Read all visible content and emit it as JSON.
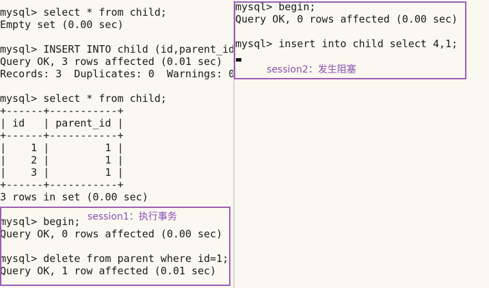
{
  "left_terminal": {
    "lines": [
      "mysql> select * from child;",
      "Empty set (0.00 sec)",
      "",
      "mysql> INSERT INTO child (id,parent_id",
      "Query OK, 3 rows affected (0.01 sec)",
      "Records: 3  Duplicates: 0  Warnings: 0",
      "",
      "mysql> select * from child;",
      "+------+-----------+",
      "| id   | parent_id |",
      "+------+-----------+",
      "|    1 |         1 |",
      "|    2 |         1 |",
      "|    3 |         1 |",
      "+------+-----------+",
      "3 rows in set (0.00 sec)",
      "",
      "mysql> begin;",
      "Query OK, 0 rows affected (0.00 sec)",
      "",
      "mysql> delete from parent where id=1;",
      "Query OK, 1 row affected (0.01 sec)"
    ]
  },
  "right_terminal": {
    "lines": [
      "mysql> begin;",
      "Query OK, 0 rows affected (0.00 sec)",
      "",
      "mysql> insert into child select 4,1;"
    ]
  },
  "annotations": {
    "session1": "session1：执行事务",
    "session2": "session2：发生阻塞"
  },
  "colors": {
    "annotation": "#8a4fb4",
    "box_border": "#9d5cb6",
    "terminal_bg": "#faf8f0",
    "text": "#1a1a1a"
  }
}
